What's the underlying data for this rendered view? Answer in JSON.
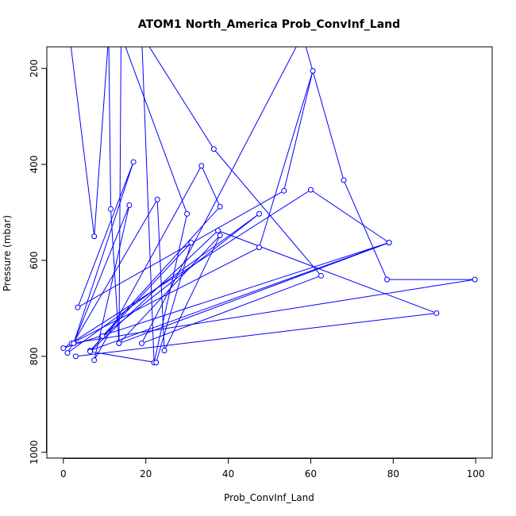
{
  "chart_data": {
    "type": "line",
    "title": "ATOM1 North_America Prob_ConvInf_Land",
    "xlabel": "Prob_ConvInf_Land",
    "ylabel": "Pressure (mbar)",
    "xlim": [
      -4,
      104
    ],
    "ylim": [
      1012,
      155
    ],
    "y_reversed": true,
    "grid": false,
    "legend": "none",
    "x_ticks": [
      0,
      20,
      40,
      60,
      80,
      100
    ],
    "y_ticks": [
      200,
      400,
      600,
      800,
      1000
    ],
    "line_color": "#0000ff",
    "marker": "open-circle",
    "series": [
      {
        "points": [
          [
            1.5,
            130
          ],
          [
            7.5,
            550
          ],
          [
            11,
            130
          ],
          [
            11.5,
            493
          ],
          [
            13.5,
            773
          ],
          [
            14,
            130
          ],
          [
            30,
            503
          ],
          [
            22,
            813
          ],
          [
            19,
            130
          ],
          [
            36.5,
            368
          ],
          [
            62.5,
            632
          ],
          [
            19,
            773
          ],
          [
            58,
            130
          ],
          [
            68,
            433
          ],
          [
            78.5,
            640
          ],
          [
            99.8,
            640
          ],
          [
            2,
            773
          ],
          [
            47.5,
            573
          ],
          [
            60.5,
            205
          ],
          [
            53.5,
            455
          ],
          [
            3.5,
            698
          ],
          [
            17,
            395
          ],
          [
            2.5,
            773
          ],
          [
            16,
            485
          ],
          [
            7.5,
            808
          ],
          [
            33.5,
            403
          ],
          [
            38,
            488
          ],
          [
            9.5,
            758
          ],
          [
            47.5,
            503
          ],
          [
            1,
            793
          ],
          [
            22.8,
            473
          ],
          [
            24.5,
            788
          ],
          [
            38,
            548
          ],
          [
            13.5,
            773
          ],
          [
            79,
            563
          ],
          [
            0,
            783
          ],
          [
            60,
            453
          ],
          [
            79,
            563
          ],
          [
            6.5,
            788
          ],
          [
            31,
            563
          ],
          [
            22.5,
            813
          ],
          [
            6.5,
            790
          ],
          [
            37.5,
            538
          ],
          [
            90.5,
            710
          ],
          [
            3,
            800
          ]
        ]
      }
    ]
  }
}
